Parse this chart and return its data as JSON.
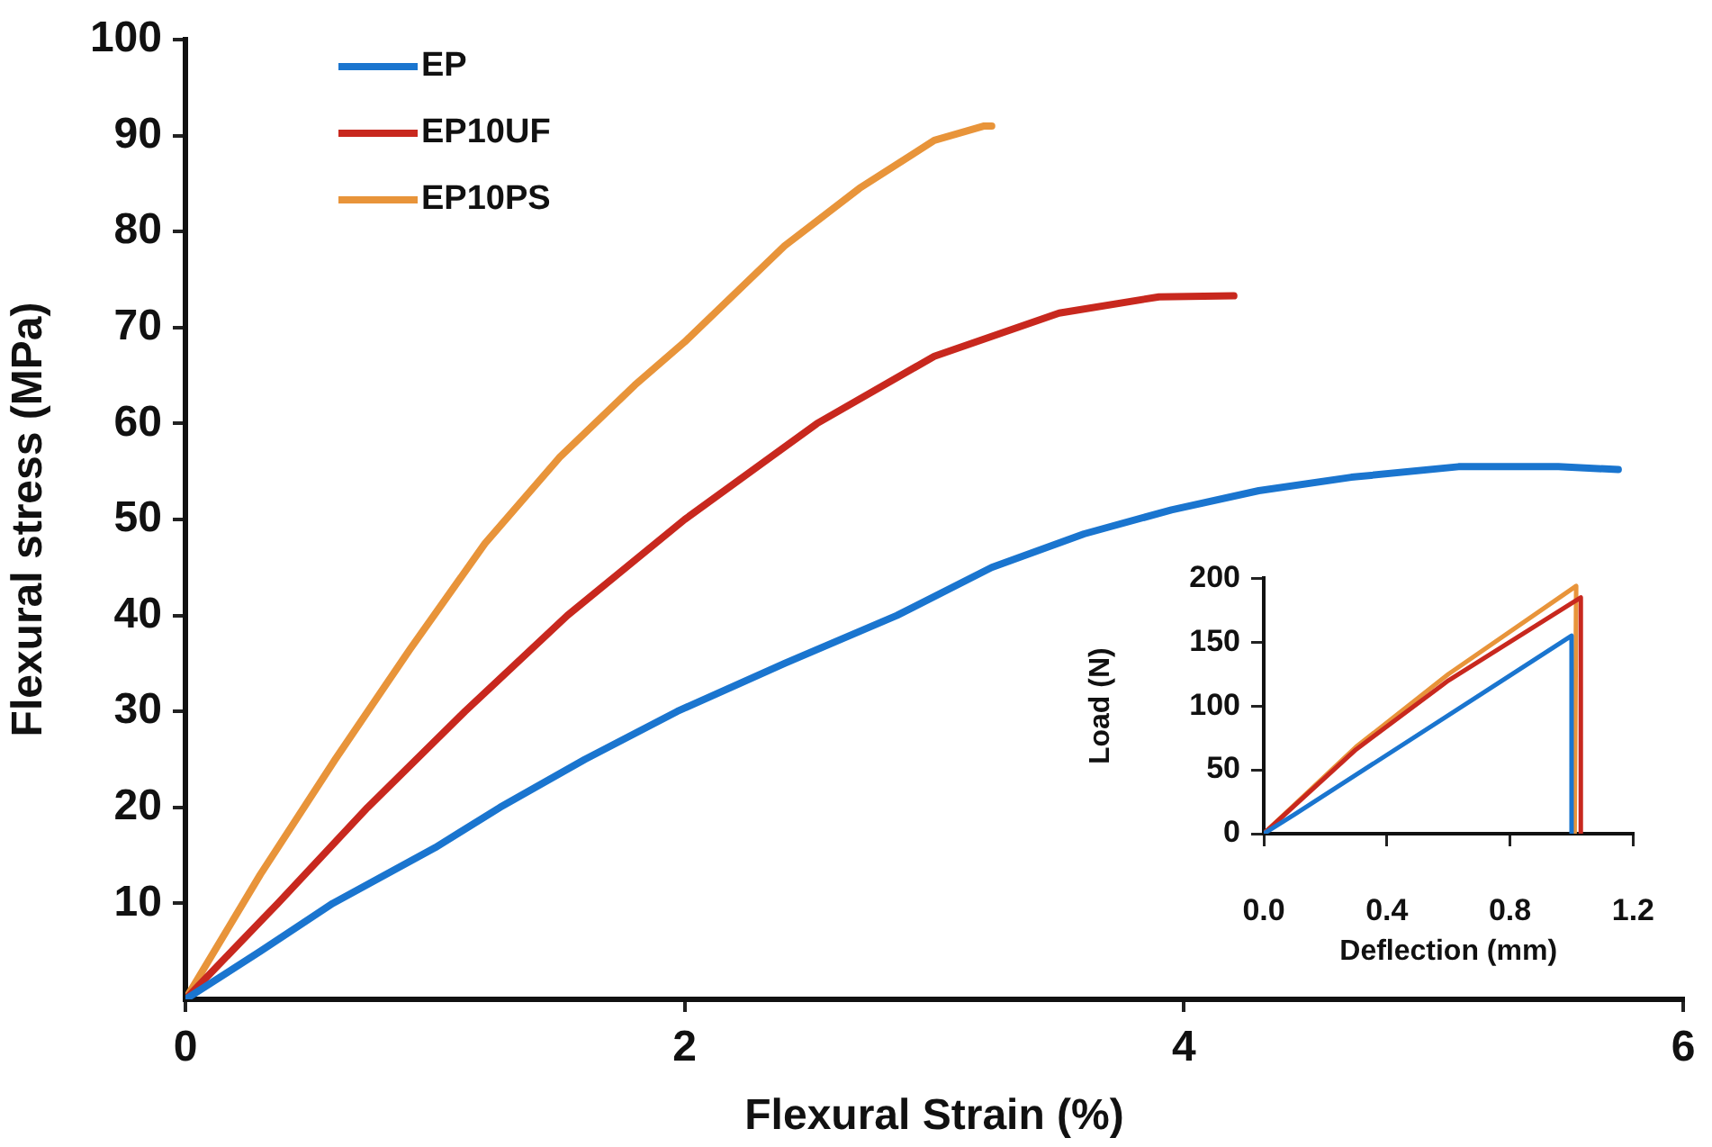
{
  "chart_data": [
    {
      "type": "line",
      "xlabel": "Flexural Strain (%)",
      "ylabel": "Flexural stress (MPa)",
      "xlim": [
        0,
        6
      ],
      "xticks": [
        0,
        2,
        4,
        6
      ],
      "ylim": [
        0,
        100
      ],
      "yticks": [
        10,
        20,
        30,
        40,
        50,
        60,
        70,
        80,
        90,
        100
      ],
      "legend": "top left",
      "marker": "none",
      "grid": false,
      "series": [
        {
          "name": "EP",
          "color": "#1a75cf",
          "x": [
            0,
            0.3,
            0.59,
            1.0,
            1.26,
            1.6,
            1.97,
            2.4,
            2.85,
            3.23,
            3.6,
            3.95,
            4.3,
            4.67,
            5.1,
            5.5,
            5.74
          ],
          "values": [
            0,
            5,
            10,
            15.8,
            20,
            25,
            30,
            35,
            40,
            45,
            48.5,
            51,
            53,
            54.4,
            55.5,
            55.5,
            55.2
          ]
        },
        {
          "name": "EP10UF",
          "color": "#c8281e",
          "x": [
            0,
            0.37,
            0.73,
            1.12,
            1.53,
            2.0,
            2.53,
            3.0,
            3.5,
            3.9,
            4.2
          ],
          "values": [
            0,
            10,
            20,
            30,
            40,
            50,
            60,
            67,
            71.5,
            73.2,
            73.3
          ]
        },
        {
          "name": "EP10PS",
          "color": "#e8943a",
          "x": [
            0,
            0.3,
            0.6,
            0.9,
            1.2,
            1.5,
            1.8,
            2.0,
            2.4,
            2.7,
            3.0,
            3.2,
            3.23
          ],
          "values": [
            0,
            13,
            25,
            36.5,
            47.5,
            56.5,
            64,
            68.5,
            78.5,
            84.5,
            89.5,
            91,
            91
          ]
        }
      ]
    },
    {
      "type": "line",
      "xlabel": "Deflection (mm)",
      "ylabel": "Load (N)",
      "xlim": [
        0,
        1.2
      ],
      "xticks": [
        {
          "value": 0,
          "label": "0.0"
        },
        0.4,
        0.8,
        1.2
      ],
      "ylim": [
        0,
        200
      ],
      "yticks": [
        0,
        50,
        100,
        150,
        200
      ],
      "marker": "none",
      "grid": false,
      "legend": false,
      "series": [
        {
          "color": "#1a75cf",
          "x": [
            0,
            0.1,
            1.0,
            1.0
          ],
          "values": [
            0,
            15,
            155,
            0
          ]
        },
        {
          "color": "#c8281e",
          "x": [
            0,
            0.3,
            0.6,
            1.03,
            1.03
          ],
          "values": [
            0,
            66,
            120,
            185,
            0
          ]
        },
        {
          "color": "#e8943a",
          "x": [
            0,
            0.3,
            0.6,
            1.015,
            1.01
          ],
          "values": [
            0,
            68,
            125,
            194,
            0
          ]
        }
      ]
    }
  ]
}
